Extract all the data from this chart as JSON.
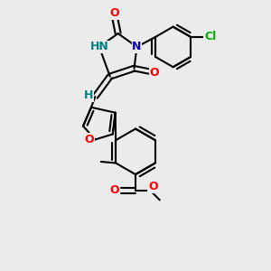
{
  "bg_color": "#ebebeb",
  "bond_color": "#000000",
  "bond_width": 1.5,
  "figsize": [
    3.0,
    3.0
  ],
  "dpi": 100,
  "colors": {
    "N": "#0000cc",
    "NH": "#008080",
    "O": "#ff0000",
    "Cl": "#00aa00",
    "H": "#008080",
    "C": "#000000"
  }
}
